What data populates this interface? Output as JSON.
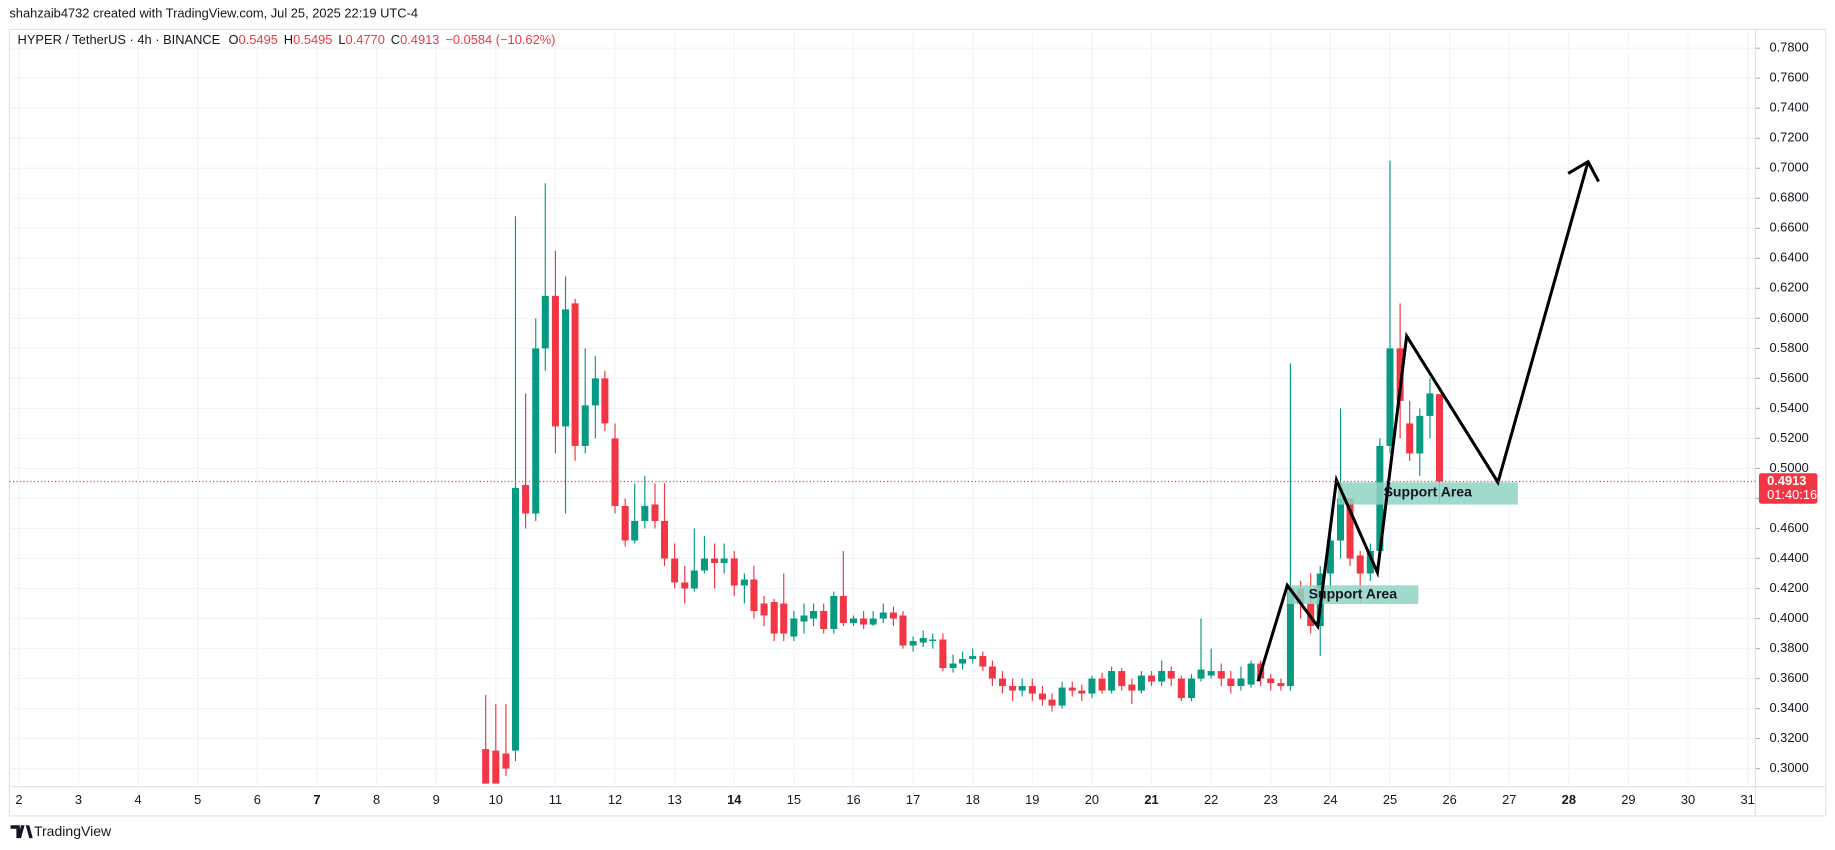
{
  "chart_data": {
    "type": "candlestick",
    "credit": "shahzaib4732 created with TradingView.com, Jul 25, 2025 22:19 UTC-4",
    "title": "HYPER / TetherUS · 4h · BINANCE",
    "legend": [
      {
        "label": "O",
        "value": "0.5495"
      },
      {
        "label": "H",
        "value": "0.5495"
      },
      {
        "label": "L",
        "value": "0.4770"
      },
      {
        "label": "C",
        "value": "0.4913"
      }
    ],
    "change": "−0.0584 (−10.62%)",
    "last_price": {
      "value": 0.4913,
      "label": "0.4913"
    },
    "countdown": "01:40:16",
    "annotations": [
      "Support Area",
      "Support Area"
    ],
    "brand": "TradingView",
    "up_color": "#089981",
    "down_color": "#f23645",
    "x": [
      9.83,
      10,
      10.17,
      10.33,
      10.5,
      10.67,
      10.83,
      11,
      11.17,
      11.33,
      11.5,
      11.67,
      11.83,
      12,
      12.17,
      12.33,
      12.5,
      12.67,
      12.83,
      13,
      13.17,
      13.33,
      13.5,
      13.67,
      13.83,
      14,
      14.17,
      14.33,
      14.5,
      14.67,
      14.83,
      15,
      15.17,
      15.33,
      15.5,
      15.67,
      15.83,
      16,
      16.17,
      16.33,
      16.5,
      16.67,
      16.83,
      17,
      17.17,
      17.33,
      17.5,
      17.67,
      17.83,
      18,
      18.17,
      18.33,
      18.5,
      18.67,
      18.83,
      19,
      19.17,
      19.33,
      19.5,
      19.67,
      19.83,
      20,
      20.17,
      20.33,
      20.5,
      20.67,
      20.83,
      21,
      21.17,
      21.33,
      21.5,
      21.67,
      21.83,
      22,
      22.17,
      22.33,
      22.5,
      22.67,
      22.83,
      23,
      23.17,
      23.33,
      23.5,
      23.67,
      23.83,
      24,
      24.17,
      24.33,
      24.5,
      24.67,
      24.83,
      25,
      25.17,
      25.33,
      25.5,
      25.67,
      25.83
    ],
    "open": [
      0.313,
      0.312,
      0.31,
      0.312,
      0.489,
      0.47,
      0.58,
      0.615,
      0.528,
      0.61,
      0.515,
      0.542,
      0.56,
      0.52,
      0.475,
      0.452,
      0.465,
      0.476,
      0.465,
      0.44,
      0.424,
      0.42,
      0.432,
      0.44,
      0.437,
      0.44,
      0.422,
      0.426,
      0.41,
      0.411,
      0.41,
      0.388,
      0.398,
      0.4,
      0.405,
      0.393,
      0.415,
      0.397,
      0.4,
      0.396,
      0.4,
      0.404,
      0.402,
      0.382,
      0.384,
      0.385,
      0.386,
      0.367,
      0.37,
      0.373,
      0.375,
      0.368,
      0.36,
      0.355,
      0.352,
      0.355,
      0.35,
      0.346,
      0.342,
      0.354,
      0.352,
      0.35,
      0.36,
      0.352,
      0.365,
      0.356,
      0.352,
      0.362,
      0.358,
      0.365,
      0.36,
      0.347,
      0.36,
      0.362,
      0.365,
      0.36,
      0.355,
      0.356,
      0.37,
      0.36,
      0.357,
      0.355,
      0.42,
      0.41,
      0.395,
      0.43,
      0.452,
      0.48,
      0.442,
      0.43,
      0.445,
      0.515,
      0.58,
      0.53,
      0.51,
      0.535,
      0.5495
    ],
    "high": [
      0.349,
      0.343,
      0.343,
      0.668,
      0.55,
      0.6,
      0.69,
      0.645,
      0.628,
      0.613,
      0.58,
      0.575,
      0.565,
      0.53,
      0.48,
      0.49,
      0.495,
      0.49,
      0.49,
      0.45,
      0.435,
      0.46,
      0.455,
      0.45,
      0.45,
      0.445,
      0.43,
      0.435,
      0.415,
      0.413,
      0.43,
      0.405,
      0.41,
      0.41,
      0.41,
      0.418,
      0.445,
      0.402,
      0.405,
      0.405,
      0.41,
      0.408,
      0.405,
      0.388,
      0.392,
      0.39,
      0.39,
      0.376,
      0.378,
      0.38,
      0.378,
      0.372,
      0.365,
      0.36,
      0.36,
      0.36,
      0.355,
      0.35,
      0.358,
      0.358,
      0.356,
      0.362,
      0.364,
      0.368,
      0.367,
      0.36,
      0.365,
      0.365,
      0.372,
      0.368,
      0.362,
      0.363,
      0.4,
      0.38,
      0.37,
      0.365,
      0.368,
      0.372,
      0.372,
      0.363,
      0.36,
      0.57,
      0.425,
      0.43,
      0.435,
      0.46,
      0.54,
      0.48,
      0.445,
      0.45,
      0.52,
      0.705,
      0.61,
      0.545,
      0.54,
      0.56,
      0.5495
    ],
    "low": [
      0.29,
      0.29,
      0.295,
      0.305,
      0.46,
      0.465,
      0.565,
      0.51,
      0.47,
      0.505,
      0.51,
      0.52,
      0.525,
      0.47,
      0.448,
      0.45,
      0.46,
      0.46,
      0.435,
      0.42,
      0.41,
      0.418,
      0.43,
      0.42,
      0.43,
      0.415,
      0.41,
      0.4,
      0.395,
      0.385,
      0.385,
      0.385,
      0.39,
      0.395,
      0.39,
      0.39,
      0.395,
      0.395,
      0.393,
      0.395,
      0.397,
      0.395,
      0.38,
      0.378,
      0.381,
      0.38,
      0.365,
      0.364,
      0.366,
      0.37,
      0.365,
      0.355,
      0.35,
      0.345,
      0.348,
      0.345,
      0.342,
      0.338,
      0.34,
      0.348,
      0.345,
      0.347,
      0.35,
      0.35,
      0.352,
      0.343,
      0.35,
      0.355,
      0.355,
      0.355,
      0.345,
      0.345,
      0.358,
      0.36,
      0.355,
      0.35,
      0.352,
      0.354,
      0.355,
      0.352,
      0.352,
      0.352,
      0.4,
      0.39,
      0.375,
      0.42,
      0.44,
      0.435,
      0.41,
      0.425,
      0.44,
      0.51,
      0.52,
      0.505,
      0.495,
      0.52,
      0.477
    ],
    "close": [
      0.29,
      0.29,
      0.3,
      0.487,
      0.47,
      0.58,
      0.615,
      0.528,
      0.606,
      0.515,
      0.542,
      0.56,
      0.53,
      0.475,
      0.452,
      0.465,
      0.475,
      0.465,
      0.44,
      0.424,
      0.42,
      0.432,
      0.44,
      0.437,
      0.44,
      0.422,
      0.426,
      0.405,
      0.402,
      0.39,
      0.39,
      0.4,
      0.402,
      0.405,
      0.393,
      0.415,
      0.397,
      0.4,
      0.396,
      0.4,
      0.404,
      0.4,
      0.382,
      0.385,
      0.387,
      0.386,
      0.367,
      0.37,
      0.373,
      0.375,
      0.368,
      0.36,
      0.355,
      0.352,
      0.355,
      0.35,
      0.346,
      0.342,
      0.354,
      0.352,
      0.35,
      0.36,
      0.352,
      0.365,
      0.355,
      0.352,
      0.362,
      0.358,
      0.365,
      0.36,
      0.347,
      0.36,
      0.366,
      0.365,
      0.36,
      0.355,
      0.36,
      0.37,
      0.36,
      0.357,
      0.355,
      0.42,
      0.41,
      0.395,
      0.43,
      0.452,
      0.48,
      0.44,
      0.43,
      0.445,
      0.515,
      0.58,
      0.545,
      0.51,
      0.535,
      0.55,
      0.4913
    ],
    "xlim": [
      1.84,
      31.13
    ],
    "ylim": [
      0.288,
      0.7925
    ],
    "xticks": [
      2,
      3,
      4,
      5,
      6,
      7,
      8,
      9,
      10,
      11,
      12,
      13,
      14,
      15,
      16,
      17,
      18,
      19,
      20,
      21,
      22,
      23,
      24,
      25,
      26,
      27,
      28,
      29,
      30,
      31
    ],
    "yticks": [
      {
        "value": 0.3,
        "label": "0.3000"
      },
      {
        "value": 0.32,
        "label": "0.3200"
      },
      {
        "value": 0.34,
        "label": "0.3400"
      },
      {
        "value": 0.36,
        "label": "0.3600"
      },
      {
        "value": 0.38,
        "label": "0.3800"
      },
      {
        "value": 0.4,
        "label": "0.4000"
      },
      {
        "value": 0.42,
        "label": "0.4200"
      },
      {
        "value": 0.44,
        "label": "0.4400"
      },
      {
        "value": 0.46,
        "label": "0.4600"
      },
      {
        "value": 0.48,
        "label": "0.4800"
      },
      {
        "value": 0.5,
        "label": "0.5000"
      },
      {
        "value": 0.52,
        "label": "0.5200"
      },
      {
        "value": 0.54,
        "label": "0.5400"
      },
      {
        "value": 0.56,
        "label": "0.5600"
      },
      {
        "value": 0.58,
        "label": "0.5800"
      },
      {
        "value": 0.6,
        "label": "0.6000"
      },
      {
        "value": 0.62,
        "label": "0.6200"
      },
      {
        "value": 0.64,
        "label": "0.6400"
      },
      {
        "value": 0.66,
        "label": "0.6600"
      },
      {
        "value": 0.68,
        "label": "0.6800"
      },
      {
        "value": 0.7,
        "label": "0.7000"
      },
      {
        "value": 0.72,
        "label": "0.7200"
      },
      {
        "value": 0.74,
        "label": "0.7400"
      },
      {
        "value": 0.76,
        "label": "0.7600"
      },
      {
        "value": 0.78,
        "label": "0.7800"
      }
    ]
  }
}
